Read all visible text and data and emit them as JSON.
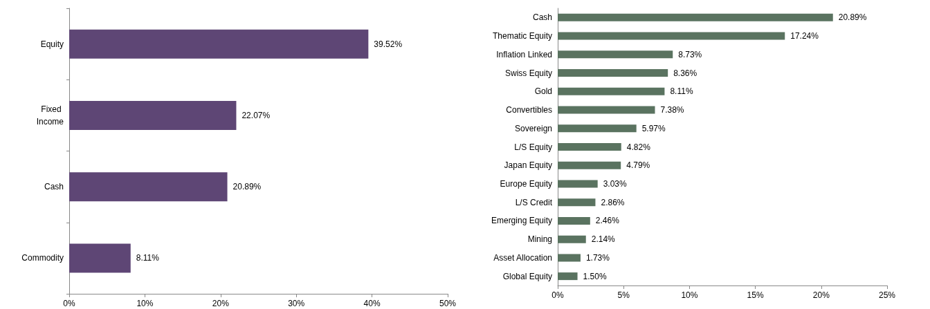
{
  "chart_data": [
    {
      "type": "bar",
      "orientation": "horizontal",
      "categories": [
        "Equity",
        "Fixed Income",
        "Cash",
        "Commodity"
      ],
      "values": [
        39.52,
        22.07,
        20.89,
        8.11
      ],
      "color": "#5e4675",
      "value_labels": [
        "39.52%",
        "22.07%",
        "20.89%",
        "8.11%"
      ],
      "xlim": [
        0,
        50
      ],
      "xticks": [
        {
          "value": 0,
          "label": "0%"
        },
        {
          "value": 10,
          "label": "10%"
        },
        {
          "value": 20,
          "label": "20%"
        },
        {
          "value": 30,
          "label": "30%"
        },
        {
          "value": 40,
          "label": "40%"
        },
        {
          "value": 50,
          "label": "50%"
        }
      ],
      "grid": false
    },
    {
      "type": "bar",
      "orientation": "horizontal",
      "categories": [
        "Cash",
        "Thematic Equity",
        "Inflation Linked",
        "Swiss Equity",
        "Gold",
        "Convertibles",
        "Sovereign",
        "L/S Equity",
        "Japan Equity",
        "Europe Equity",
        "L/S Credit",
        "Emerging Equity",
        "Mining",
        "Asset Allocation",
        "Global Equity"
      ],
      "values": [
        20.89,
        17.24,
        8.73,
        8.36,
        8.11,
        7.38,
        5.97,
        4.82,
        4.79,
        3.03,
        2.86,
        2.46,
        2.14,
        1.73,
        1.5
      ],
      "color": "#5a7360",
      "value_labels": [
        "20.89%",
        "17.24%",
        "8.73%",
        "8.36%",
        "8.11%",
        "7.38%",
        "5.97%",
        "4.82%",
        "4.79%",
        "3.03%",
        "2.86%",
        "2.46%",
        "2.14%",
        "1.73%",
        "1.50%"
      ],
      "xlim": [
        0,
        25
      ],
      "xticks": [
        {
          "value": 0,
          "label": "0%"
        },
        {
          "value": 5,
          "label": "5%"
        },
        {
          "value": 10,
          "label": "10%"
        },
        {
          "value": 15,
          "label": "15%"
        },
        {
          "value": 20,
          "label": "20%"
        },
        {
          "value": 25,
          "label": "25%"
        }
      ],
      "grid": false
    }
  ]
}
